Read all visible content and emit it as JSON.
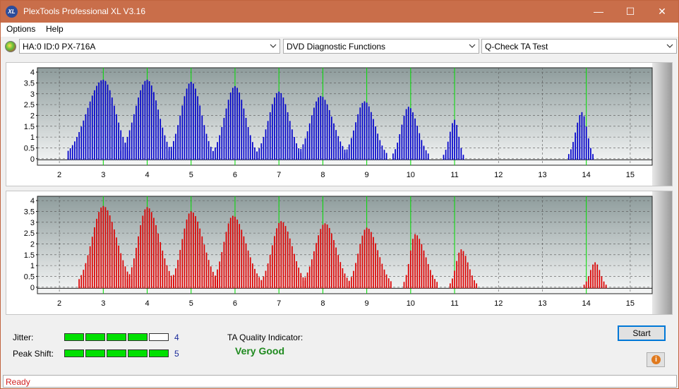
{
  "window": {
    "title": "PlexTools Professional XL V3.16",
    "icon_label": "XL",
    "minimize_glyph": "—",
    "maximize_glyph": "☐",
    "close_glyph": "✕"
  },
  "menu": {
    "items": [
      "Options",
      "Help"
    ]
  },
  "toolbar": {
    "drive": "HA:0 ID:0  PX-716A",
    "function": "DVD Diagnostic Functions",
    "test": "Q-Check TA Test"
  },
  "colors": {
    "titlebar": "#c96e4a",
    "plot_bg_top": "#8e9c9c",
    "plot_bg_bottom": "#f6f7f7",
    "jitter_bars": "#0000cc",
    "peakshift_bars": "#dd0000",
    "grid_green": "#00dd00",
    "meter_on": "#00e000",
    "quality_text": "#1f8a1f",
    "status_text": "#d02020"
  },
  "chart_data": [
    {
      "type": "bar",
      "name": "jitter",
      "color": "#0000cc",
      "xlim": [
        1.5,
        15.5
      ],
      "ylim": [
        -0.3,
        4.2
      ],
      "x_ticks": [
        "2",
        "3",
        "4",
        "5",
        "6",
        "7",
        "8",
        "9",
        "10",
        "11",
        "12",
        "13",
        "14",
        "15"
      ],
      "y_ticks": [
        "0",
        "0.5",
        "1",
        "1.5",
        "2",
        "2.5",
        "3",
        "3.5",
        "4"
      ],
      "green_lines_x": [
        3,
        4,
        5,
        6,
        7,
        8,
        9,
        10,
        11,
        14
      ],
      "peaks": [
        {
          "center": 3.0,
          "peak": 3.65,
          "from": 2.2,
          "to": 3.6
        },
        {
          "center": 4.0,
          "peak": 3.65,
          "from": 3.4,
          "to": 4.55
        },
        {
          "center": 5.0,
          "peak": 3.55,
          "from": 4.5,
          "to": 5.5
        },
        {
          "center": 6.0,
          "peak": 3.35,
          "from": 5.5,
          "to": 6.5
        },
        {
          "center": 7.0,
          "peak": 3.1,
          "from": 6.5,
          "to": 7.5
        },
        {
          "center": 7.95,
          "peak": 2.9,
          "from": 7.45,
          "to": 8.55
        },
        {
          "center": 8.95,
          "peak": 2.65,
          "from": 8.5,
          "to": 9.45
        },
        {
          "center": 9.95,
          "peak": 2.4,
          "from": 9.6,
          "to": 10.4
        },
        {
          "center": 11.0,
          "peak": 1.8,
          "from": 10.75,
          "to": 11.2
        },
        {
          "center": 13.9,
          "peak": 2.15,
          "from": 13.6,
          "to": 14.15
        }
      ]
    },
    {
      "type": "bar",
      "name": "peak_shift",
      "color": "#dd0000",
      "xlim": [
        1.5,
        15.5
      ],
      "ylim": [
        -0.3,
        4.2
      ],
      "x_ticks": [
        "2",
        "3",
        "4",
        "5",
        "6",
        "7",
        "8",
        "9",
        "10",
        "11",
        "12",
        "13",
        "14",
        "15"
      ],
      "y_ticks": [
        "0",
        "0.5",
        "1",
        "1.5",
        "2",
        "2.5",
        "3",
        "3.5",
        "4"
      ],
      "green_lines_x": [
        3,
        4,
        5,
        6,
        7,
        8,
        9,
        10,
        11,
        14
      ],
      "peaks": [
        {
          "center": 3.0,
          "peak": 3.75,
          "from": 2.45,
          "to": 3.65
        },
        {
          "center": 4.0,
          "peak": 3.7,
          "from": 3.55,
          "to": 4.6
        },
        {
          "center": 5.0,
          "peak": 3.5,
          "from": 4.55,
          "to": 5.6
        },
        {
          "center": 5.95,
          "peak": 3.3,
          "from": 5.5,
          "to": 6.6
        },
        {
          "center": 7.05,
          "peak": 3.05,
          "from": 6.6,
          "to": 7.6
        },
        {
          "center": 8.05,
          "peak": 2.95,
          "from": 7.55,
          "to": 8.6
        },
        {
          "center": 9.0,
          "peak": 2.75,
          "from": 8.6,
          "to": 9.55
        },
        {
          "center": 10.1,
          "peak": 2.45,
          "from": 9.85,
          "to": 10.6
        },
        {
          "center": 11.15,
          "peak": 1.75,
          "from": 10.9,
          "to": 11.5
        },
        {
          "center": 14.2,
          "peak": 1.15,
          "from": 13.95,
          "to": 14.45
        }
      ]
    }
  ],
  "results": {
    "jitter_label": "Jitter:",
    "jitter_value": "4",
    "jitter_level": 4,
    "peak_shift_label": "Peak Shift:",
    "peak_shift_value": "5",
    "peak_shift_level": 5,
    "meter_max": 5,
    "ta_label": "TA Quality Indicator:",
    "ta_value": "Very Good"
  },
  "buttons": {
    "start": "Start",
    "info_icon": "info-icon"
  },
  "status": {
    "text": "Ready"
  }
}
